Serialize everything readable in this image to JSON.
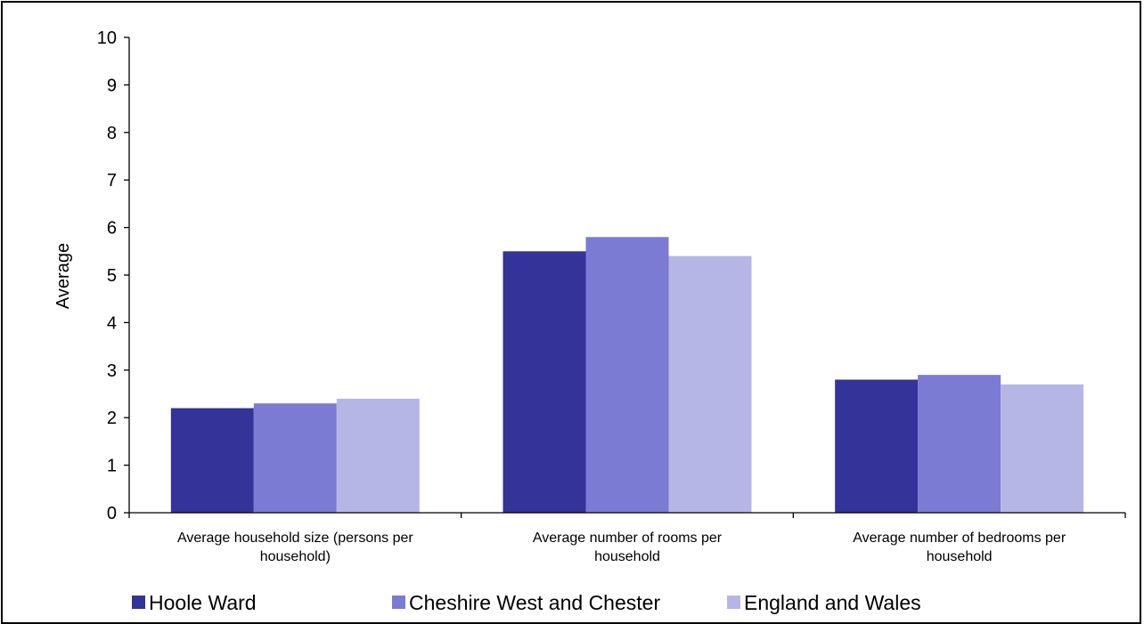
{
  "chart_data": {
    "type": "bar",
    "title": "",
    "xlabel": "",
    "ylabel": "Average",
    "ylim": [
      0,
      10
    ],
    "yticks": [
      "0",
      "1",
      "2",
      "3",
      "4",
      "5",
      "6",
      "7",
      "8",
      "9",
      "10"
    ],
    "grid": false,
    "legend_position": "bottom",
    "categories": [
      [
        "Average household size (persons per",
        "household)"
      ],
      [
        "Average number of rooms per",
        "household"
      ],
      [
        "Average number of bedrooms per",
        "household"
      ]
    ],
    "series": [
      {
        "name": "Hoole Ward",
        "color": "#333399",
        "values": [
          2.2,
          5.5,
          2.8
        ]
      },
      {
        "name": "Cheshire West and Chester",
        "color": "#7b7bd4",
        "values": [
          2.3,
          5.8,
          2.9
        ]
      },
      {
        "name": "England and Wales",
        "color": "#b6b6e6",
        "values": [
          2.4,
          5.4,
          2.7
        ]
      }
    ]
  }
}
